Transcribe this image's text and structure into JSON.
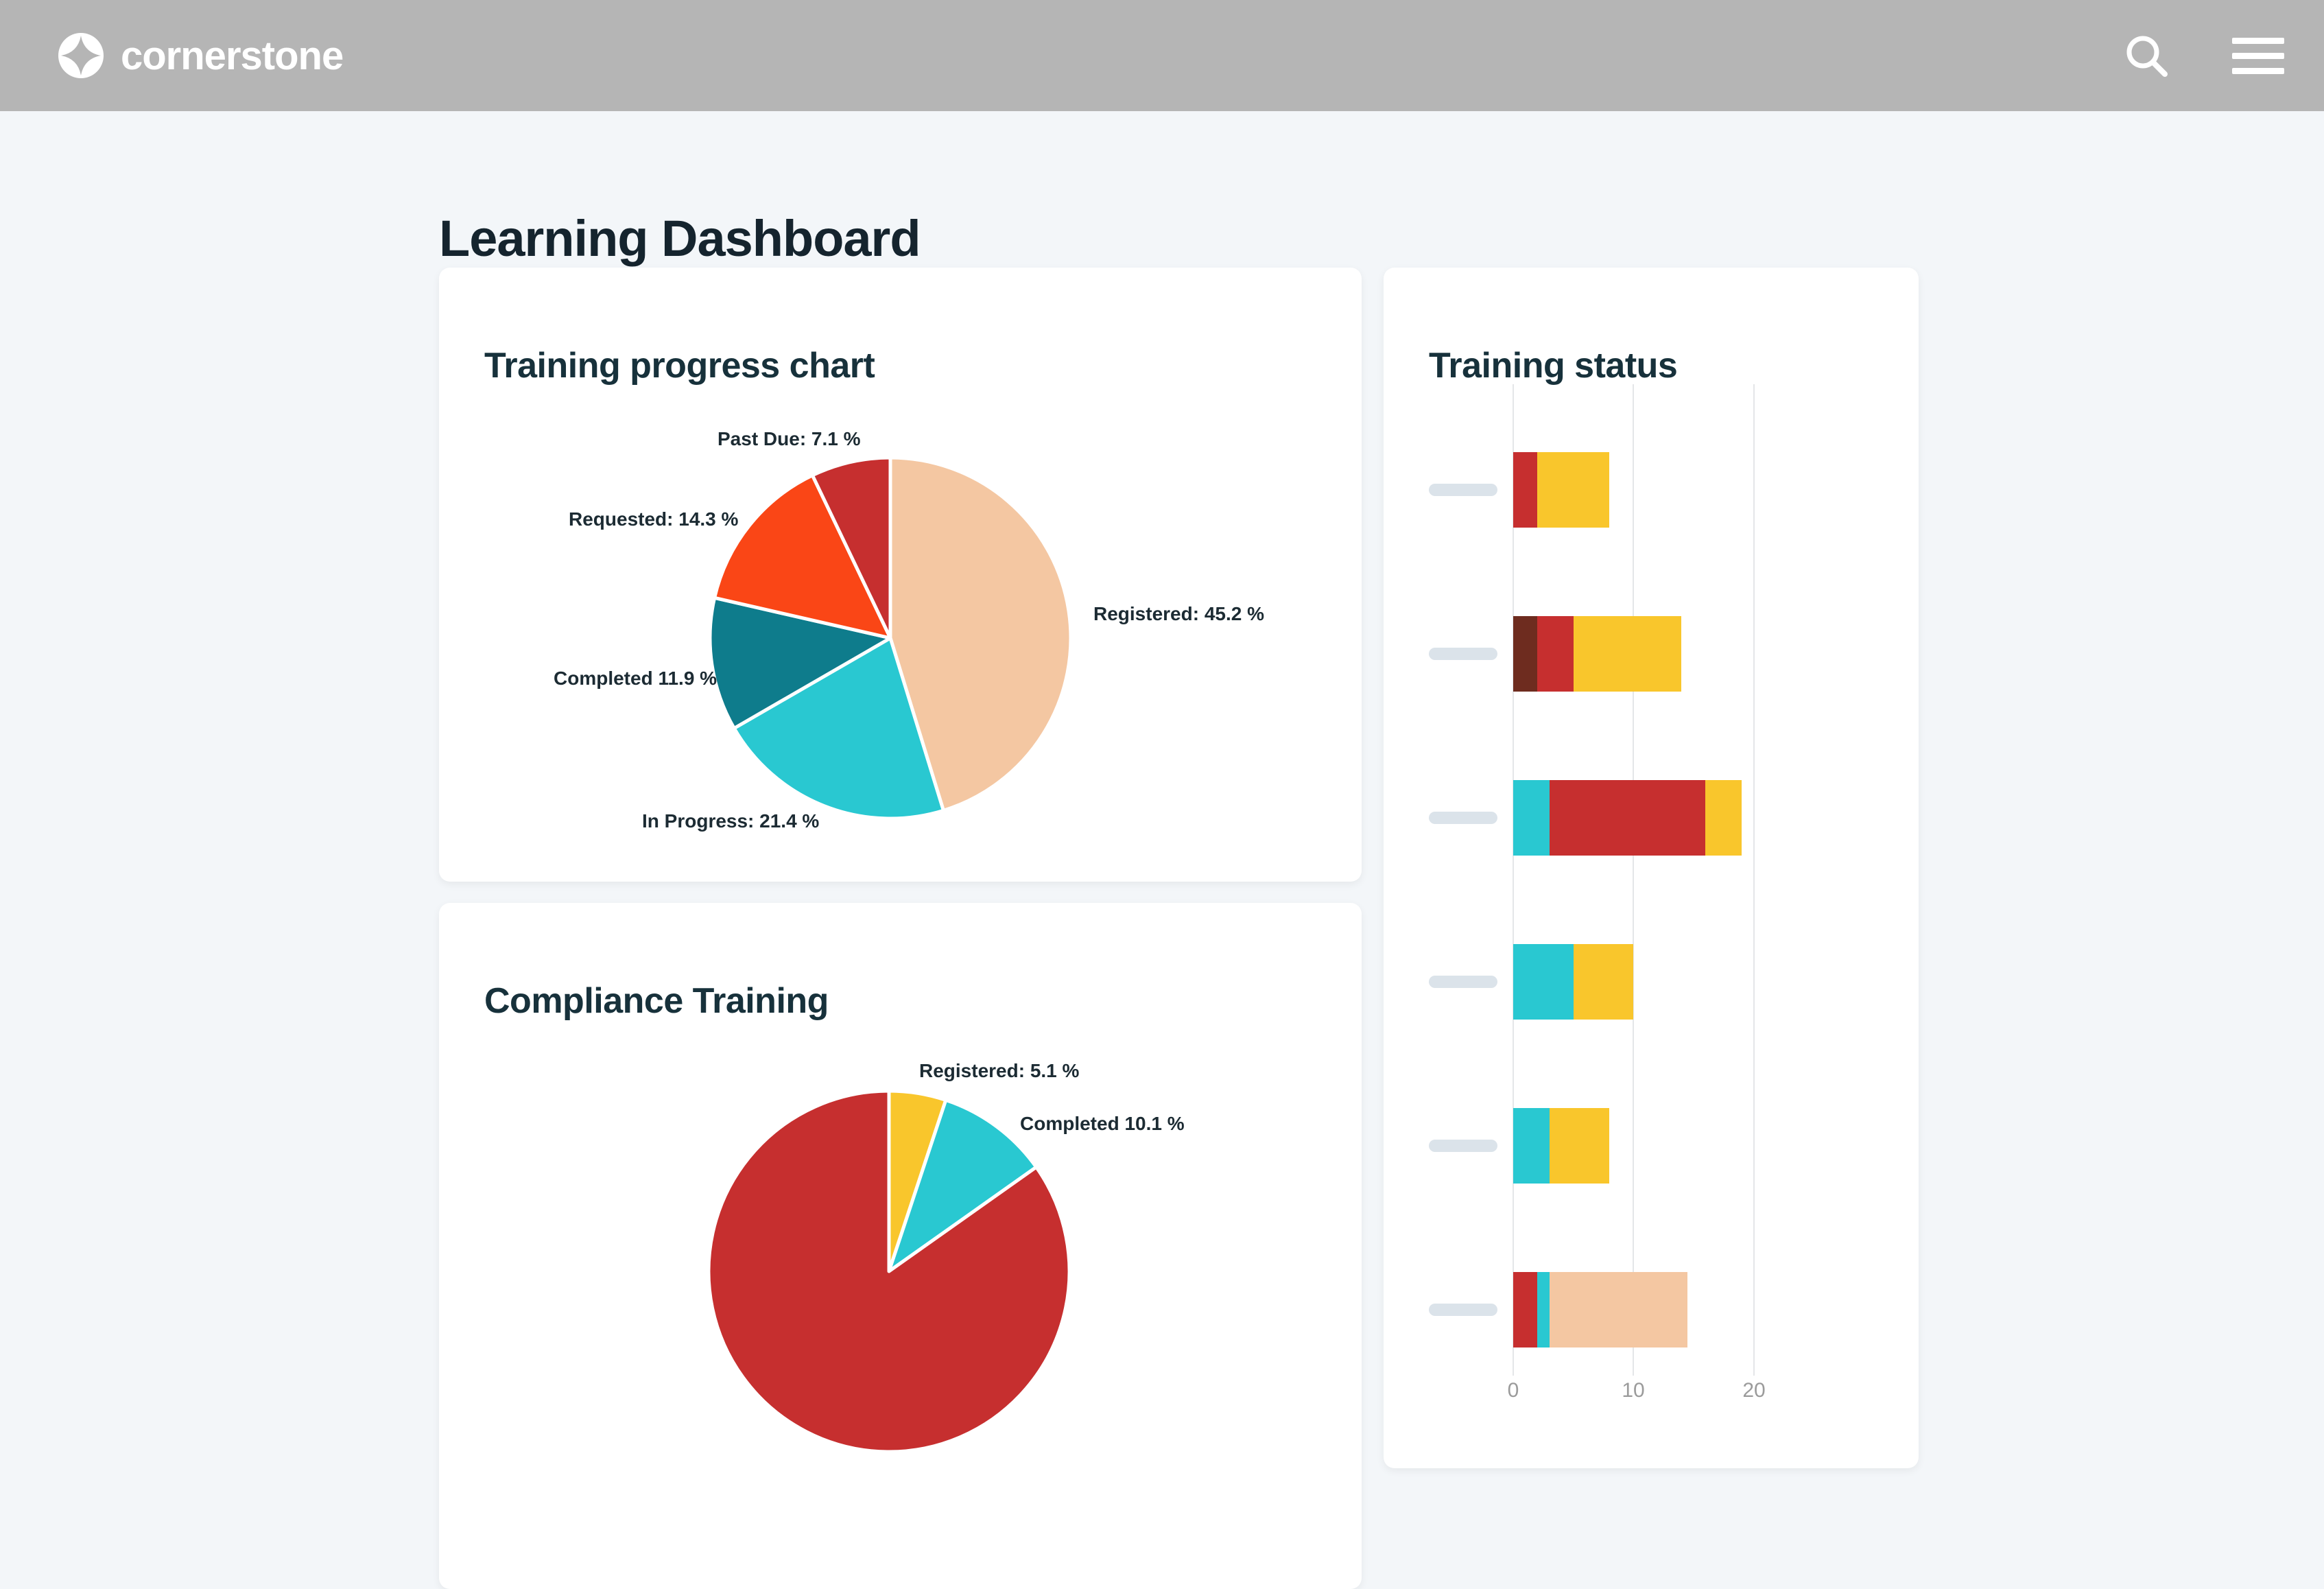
{
  "colors": {
    "header_bar": "#B5B5B5",
    "page_background": "#F3F6F9",
    "heading_text": "#17313B"
  },
  "header": {
    "brand": "cornerstone"
  },
  "page": {
    "title": "Learning Dashboard"
  },
  "cards": {
    "training_progress": {
      "title": "Training progress chart"
    },
    "compliance": {
      "title": "Compliance Training"
    },
    "training_status": {
      "title": "Training status"
    }
  },
  "chart_data": [
    {
      "type": "pie",
      "title": "Training progress chart",
      "slices": [
        {
          "label": "Registered",
          "value": 45.2,
          "color": "#F4C7A2",
          "label_text": "Registered: 45.2 %"
        },
        {
          "label": "In Progress",
          "value": 21.4,
          "color": "#29C8D1",
          "label_text": "In Progress: 21.4 %"
        },
        {
          "label": "Completed",
          "value": 11.9,
          "color": "#0E7C8C",
          "label_text": "Completed 11.9 %"
        },
        {
          "label": "Requested",
          "value": 14.3,
          "color": "#FA4616",
          "label_text": "Requested: 14.3 %"
        },
        {
          "label": "Past Due",
          "value": 7.1,
          "color": "#C62F2F",
          "label_text": "Past Due: 7.1 %"
        }
      ]
    },
    {
      "type": "pie",
      "title": "Compliance Training",
      "slices": [
        {
          "label": "Registered",
          "value": 5.1,
          "color": "#F9C62C",
          "label_text": "Registered: 5.1 %"
        },
        {
          "label": "Completed",
          "value": 10.1,
          "color": "#29C8D1",
          "label_text": "Completed 10.1 %"
        },
        {
          "label": null,
          "value": 84.8,
          "color": "#C62F2F",
          "label_text": null
        }
      ]
    },
    {
      "type": "stacked-bar-horizontal",
      "title": "Training status",
      "x_ticks": [
        "0",
        "10",
        "20"
      ],
      "row_labels_redacted": true,
      "rows": [
        {
          "segments": [
            {
              "color": "#C62F2F",
              "value": 2
            },
            {
              "color": "#F9C62C",
              "value": 6
            }
          ]
        },
        {
          "segments": [
            {
              "color": "#6E2C1F",
              "value": 2
            },
            {
              "color": "#C62F2F",
              "value": 3
            },
            {
              "color": "#F9C62C",
              "value": 9
            }
          ]
        },
        {
          "segments": [
            {
              "color": "#29C8D1",
              "value": 3
            },
            {
              "color": "#C62F2F",
              "value": 13
            },
            {
              "color": "#F9C62C",
              "value": 3
            }
          ]
        },
        {
          "segments": [
            {
              "color": "#29C8D1",
              "value": 5
            },
            {
              "color": "#F9C62C",
              "value": 5
            }
          ]
        },
        {
          "segments": [
            {
              "color": "#29C8D1",
              "value": 3
            },
            {
              "color": "#F9C62C",
              "value": 5
            }
          ]
        },
        {
          "segments": [
            {
              "color": "#C62F2F",
              "value": 2
            },
            {
              "color": "#29C8D1",
              "value": 1
            },
            {
              "color": "#F4C7A2",
              "value": 11.5
            }
          ]
        }
      ]
    }
  ]
}
